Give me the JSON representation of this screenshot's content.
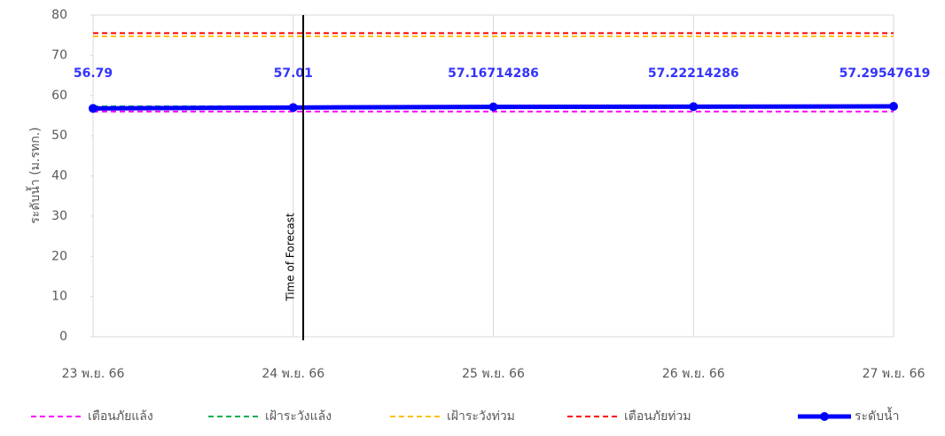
{
  "chart_data": {
    "type": "line",
    "y_label": "ระดับน้ำ (ม.รทก.)",
    "categories": [
      "23 พ.ย. 66",
      "24 พ.ย. 66",
      "25 พ.ย. 66",
      "26 พ.ย. 66",
      "27 พ.ย. 66"
    ],
    "ylim": [
      0,
      80
    ],
    "yticks": [
      0,
      10,
      20,
      30,
      40,
      50,
      60,
      70,
      80
    ],
    "grid": "x",
    "legend": "bottom",
    "annotation": {
      "text": "Time of Forecast",
      "x": 1.05
    },
    "series": [
      {
        "name": "เตือนภัยแล้ง",
        "color": "#ff00ff",
        "dashed": true,
        "values": [
          56,
          56,
          56,
          56,
          56
        ]
      },
      {
        "name": "เฝ้าระวังแล้ง",
        "color": "#00b050",
        "dashed": true,
        "values": [
          57.3,
          57.3,
          57.3,
          57.3,
          57.3
        ]
      },
      {
        "name": "เฝ้าระวังท่วม",
        "color": "#ffc000",
        "dashed": true,
        "values": [
          74.7,
          74.7,
          74.7,
          74.7,
          74.7
        ]
      },
      {
        "name": "เตือนภัยท่วม",
        "color": "#ff0000",
        "dashed": true,
        "values": [
          75.5,
          75.5,
          75.5,
          75.5,
          75.5
        ]
      },
      {
        "name": "ระดับน้ำ",
        "color": "#0000ff",
        "dashed": false,
        "markers": true,
        "data_labels": true,
        "values": [
          56.79,
          57.01,
          57.16714286,
          57.22214286,
          57.29547619
        ]
      }
    ]
  }
}
